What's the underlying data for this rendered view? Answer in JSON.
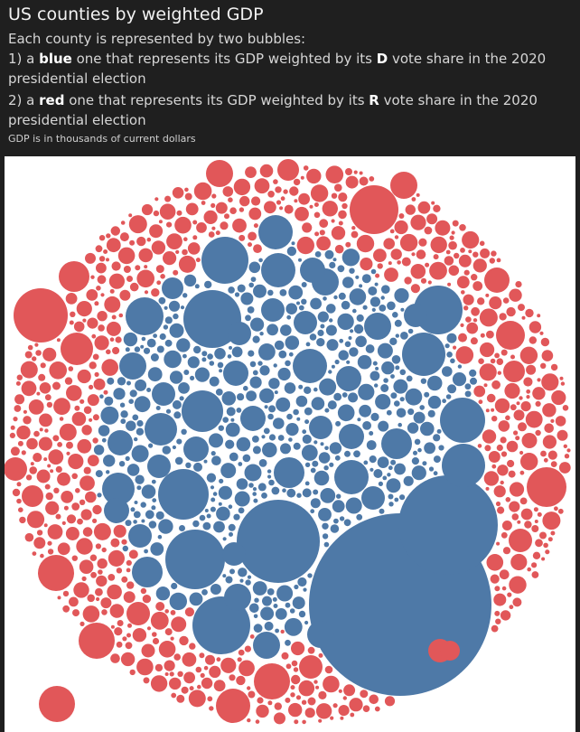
{
  "title": "US counties by weighted GDP",
  "description": {
    "intro": "Each county is represented by two bubbles:",
    "item1": {
      "prefix": "1) a ",
      "color_word": "blue",
      "middle": " one that represents its GDP weighted by its ",
      "party_letter": "D",
      "suffix": " vote share in the 2020",
      "continuation": "presidential election"
    },
    "item2": {
      "prefix": "2) a ",
      "color_word": "red",
      "middle": " one that represents its GDP weighted by its ",
      "party_letter": "R",
      "suffix": " vote share in the 2020",
      "continuation": "presidential election"
    },
    "note": "GDP is in thousands of current dollars"
  },
  "colors": {
    "background": "#1f1f1f",
    "plot_background": "#ffffff",
    "democratic": "#4e79a7",
    "republican": "#e15759"
  },
  "chart_data": {
    "type": "bubble-pack",
    "series": [
      {
        "name": "D",
        "color": "#4e79a7"
      },
      {
        "name": "R",
        "color": "#e15759"
      }
    ],
    "largest_bubbles": [
      {
        "party": "D",
        "relative_size": 1.0
      },
      {
        "party": "D",
        "relative_size": 0.8
      },
      {
        "party": "D",
        "relative_size": 0.36
      },
      {
        "party": "D",
        "relative_size": 0.31
      },
      {
        "party": "D",
        "relative_size": 0.3
      },
      {
        "party": "R",
        "relative_size": 0.25
      },
      {
        "party": "R",
        "relative_size": 0.15
      },
      {
        "party": "R",
        "relative_size": 0.14
      }
    ]
  }
}
